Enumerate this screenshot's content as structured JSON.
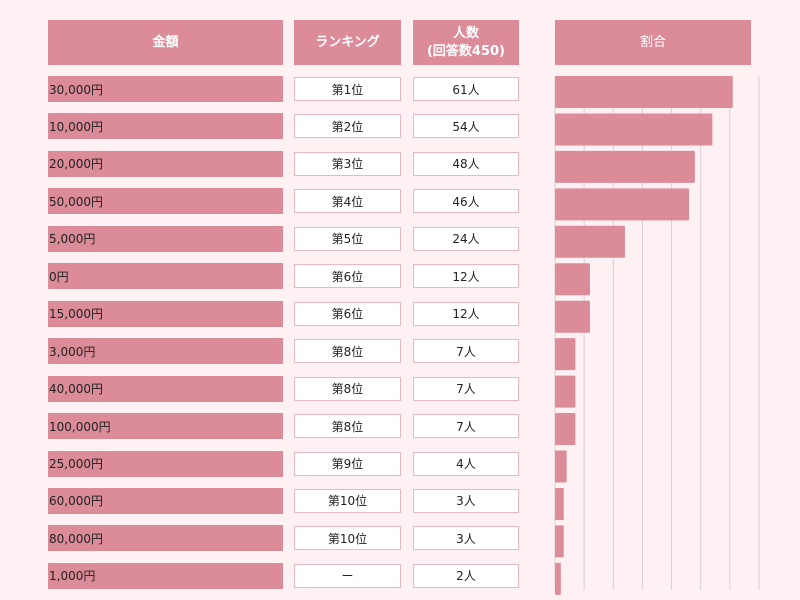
{
  "headers": {
    "amount": "金額",
    "ranking": "ランキング",
    "count_line1": "人数",
    "count_line2": "(回答数450)",
    "ratio": "割合"
  },
  "colors": {
    "bar": "#dc8c99",
    "background": "#fdf1f4",
    "grid": "#d9cfd2"
  },
  "chart_data": {
    "type": "bar",
    "orientation": "horizontal",
    "title": "割合",
    "total_respondents": 450,
    "xlim": [
      0,
      70
    ],
    "grid": true,
    "rows": [
      {
        "amount": "30,000円",
        "rank": "第1位",
        "count_label": "61人",
        "value": 61
      },
      {
        "amount": "10,000円",
        "rank": "第2位",
        "count_label": "54人",
        "value": 54
      },
      {
        "amount": "20,000円",
        "rank": "第3位",
        "count_label": "48人",
        "value": 48
      },
      {
        "amount": "50,000円",
        "rank": "第4位",
        "count_label": "46人",
        "value": 46
      },
      {
        "amount": "5,000円",
        "rank": "第5位",
        "count_label": "24人",
        "value": 24
      },
      {
        "amount": "0円",
        "rank": "第6位",
        "count_label": "12人",
        "value": 12
      },
      {
        "amount": "15,000円",
        "rank": "第6位",
        "count_label": "12人",
        "value": 12
      },
      {
        "amount": "3,000円",
        "rank": "第8位",
        "count_label": "7人",
        "value": 7
      },
      {
        "amount": "40,000円",
        "rank": "第8位",
        "count_label": "7人",
        "value": 7
      },
      {
        "amount": "100,000円",
        "rank": "第8位",
        "count_label": "7人",
        "value": 7
      },
      {
        "amount": "25,000円",
        "rank": "第9位",
        "count_label": "4人",
        "value": 4
      },
      {
        "amount": "60,000円",
        "rank": "第10位",
        "count_label": "3人",
        "value": 3
      },
      {
        "amount": "80,000円",
        "rank": "第10位",
        "count_label": "3人",
        "value": 3
      },
      {
        "amount": "1,000円",
        "rank": "ー",
        "count_label": "2人",
        "value": 2
      }
    ]
  }
}
